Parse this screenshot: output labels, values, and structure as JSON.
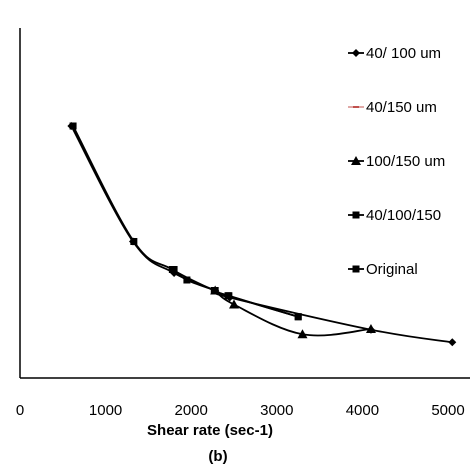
{
  "chart_data": {
    "type": "line",
    "title": "",
    "xlabel": "Shear rate (sec-1)",
    "ylabel": "",
    "panel_label": "(b)",
    "xlim": [
      0,
      5000
    ],
    "x_ticks": [
      "0",
      "1000",
      "2000",
      "3000",
      "4000",
      "5000"
    ],
    "ylim": [
      0,
      1
    ],
    "grid": false,
    "legend_position": "right",
    "series": [
      {
        "name": "40/ 100 um",
        "marker": "diamond",
        "color": "#000000",
        "x": [
          600,
          1320,
          1800,
          2280,
          2450,
          4100,
          5050
        ],
        "y": [
          0.72,
          0.39,
          0.3,
          0.25,
          0.23,
          0.138,
          0.102
        ]
      },
      {
        "name": "40/150 um",
        "marker": "dash",
        "color": "#c0504d",
        "x": [],
        "y": []
      },
      {
        "name": "100/150 um",
        "marker": "triangle",
        "color": "#000000",
        "x": [
          2280,
          2500,
          3300,
          4100
        ],
        "y": [
          0.25,
          0.21,
          0.125,
          0.14
        ]
      },
      {
        "name": "40/100/150",
        "marker": "square",
        "color": "#000000",
        "x": [
          1800,
          1950,
          2280,
          2430,
          3250
        ],
        "y": [
          0.31,
          0.28,
          0.25,
          0.235,
          0.175
        ]
      },
      {
        "name": "Original",
        "marker": "square",
        "color": "#000000",
        "x": [
          620,
          1330,
          1780,
          2270,
          2440,
          3250
        ],
        "y": [
          0.72,
          0.39,
          0.31,
          0.25,
          0.235,
          0.175
        ]
      }
    ]
  }
}
